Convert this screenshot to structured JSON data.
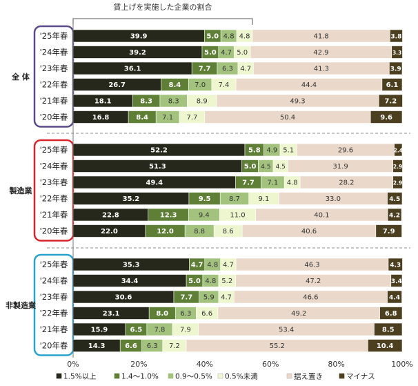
{
  "chart_data": {
    "type": "bar",
    "stacked": true,
    "orientation": "horizontal",
    "bracket_label": "賃上げを実施した企業の割合",
    "x_ticks": [
      "0%",
      "20%",
      "40%",
      "60%",
      "80%",
      "100%"
    ],
    "xlim": [
      0,
      100
    ],
    "legend": [
      {
        "name": "1.5%以上",
        "color": "#25281a"
      },
      {
        "name": "1.4～1.0%",
        "color": "#5e7f35"
      },
      {
        "name": "0.9～0.5%",
        "color": "#a3c27e"
      },
      {
        "name": "0.5%未満",
        "color": "#edf6cf"
      },
      {
        "name": "据え置き",
        "color": "#ead9cb"
      },
      {
        "name": "マイナス",
        "color": "#4c3f20"
      }
    ],
    "label_colors": [
      "#ffffff",
      "#ffffff",
      "#333333",
      "#333333",
      "#333333",
      "#ffffff"
    ],
    "groups": [
      {
        "name": "全 体",
        "box_color": "#5b4a8a",
        "rows": [
          {
            "label": "'25年春",
            "values": [
              39.9,
              5.0,
              4.8,
              4.8,
              41.8,
              3.8
            ]
          },
          {
            "label": "'24年春",
            "values": [
              39.2,
              5.0,
              4.7,
              5.0,
              42.9,
              3.3
            ]
          },
          {
            "label": "'23年春",
            "values": [
              36.1,
              7.7,
              6.3,
              4.7,
              41.3,
              3.9
            ]
          },
          {
            "label": "'22年春",
            "values": [
              26.7,
              8.4,
              7.0,
              7.4,
              44.4,
              6.1
            ]
          },
          {
            "label": "'21年春",
            "values": [
              18.1,
              8.3,
              8.3,
              8.9,
              49.3,
              7.2
            ]
          },
          {
            "label": "'20年春",
            "values": [
              16.8,
              8.4,
              7.1,
              7.7,
              50.4,
              9.6
            ]
          }
        ]
      },
      {
        "name": "製造業",
        "box_color": "#d9232b",
        "rows": [
          {
            "label": "'25年春",
            "values": [
              52.2,
              5.8,
              4.9,
              5.1,
              29.6,
              2.4
            ]
          },
          {
            "label": "'24年春",
            "values": [
              51.3,
              5.0,
              4.5,
              4.5,
              31.9,
              2.9
            ]
          },
          {
            "label": "'23年春",
            "values": [
              49.4,
              7.7,
              7.1,
              4.8,
              28.2,
              2.9
            ]
          },
          {
            "label": "'22年春",
            "values": [
              35.2,
              9.5,
              8.7,
              9.1,
              33.0,
              4.5
            ]
          },
          {
            "label": "'21年春",
            "values": [
              22.8,
              12.3,
              9.4,
              11.0,
              40.1,
              4.2
            ]
          },
          {
            "label": "'20年春",
            "values": [
              22.0,
              12.0,
              8.8,
              8.6,
              40.6,
              7.9
            ]
          }
        ]
      },
      {
        "name": "非製造業",
        "box_color": "#2aa3cc",
        "rows": [
          {
            "label": "'25年春",
            "values": [
              35.3,
              4.7,
              4.8,
              4.7,
              46.3,
              4.3
            ]
          },
          {
            "label": "'24年春",
            "values": [
              34.4,
              5.0,
              4.8,
              5.2,
              47.2,
              3.4
            ]
          },
          {
            "label": "'23年春",
            "values": [
              30.6,
              7.7,
              5.9,
              4.7,
              46.6,
              4.4
            ]
          },
          {
            "label": "'22年春",
            "values": [
              23.1,
              8.0,
              6.3,
              6.6,
              49.2,
              6.8
            ]
          },
          {
            "label": "'21年春",
            "values": [
              15.9,
              6.5,
              7.8,
              7.9,
              53.4,
              8.5
            ]
          },
          {
            "label": "'20年春",
            "values": [
              14.3,
              6.6,
              6.3,
              7.2,
              55.2,
              10.4
            ]
          }
        ]
      }
    ]
  }
}
